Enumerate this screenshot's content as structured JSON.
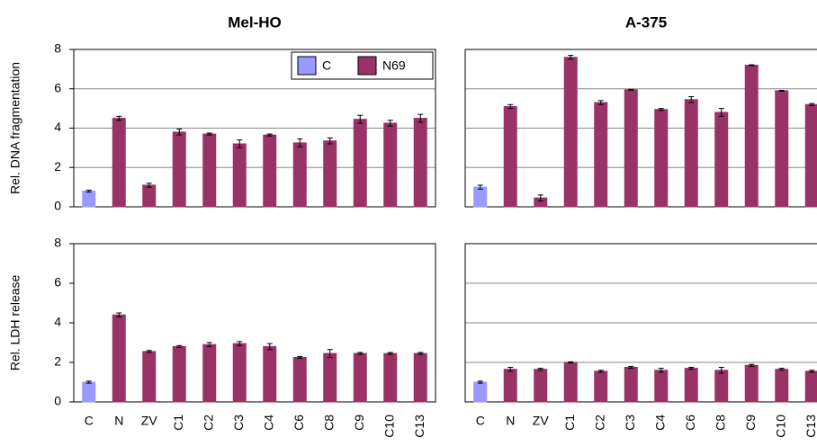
{
  "chart_data": [
    {
      "type": "bar",
      "title": "Mel-HO",
      "ylabel": "Rel. DNA fragmentation",
      "ylim": [
        0,
        8
      ],
      "yticks": [
        0,
        2,
        4,
        6,
        8
      ],
      "grid": true,
      "legend": "upper right",
      "series": [
        {
          "name": "C",
          "color": "#9999ff",
          "values": [
            0.8,
            null,
            null,
            null,
            null,
            null,
            null,
            null,
            null,
            null,
            null,
            null
          ],
          "errors": [
            0.05,
            null,
            null,
            null,
            null,
            null,
            null,
            null,
            null,
            null,
            null,
            null
          ]
        },
        {
          "name": "N69",
          "color": "#993366",
          "values": [
            null,
            4.5,
            1.1,
            3.8,
            3.7,
            3.2,
            3.65,
            3.25,
            3.35,
            4.45,
            4.25,
            4.5
          ],
          "errors": [
            null,
            0.1,
            0.1,
            0.15,
            0.05,
            0.2,
            0.05,
            0.2,
            0.15,
            0.2,
            0.15,
            0.2
          ]
        }
      ]
    },
    {
      "type": "bar",
      "title": "A-375",
      "grid": true,
      "series": [
        {
          "color": "#9999ff",
          "values": [
            1.0,
            null,
            null,
            null,
            null,
            null,
            null,
            null,
            null,
            null,
            null,
            null
          ],
          "errors": [
            0.1,
            null,
            null,
            null,
            null,
            null,
            null,
            null,
            null,
            null,
            null,
            null
          ]
        },
        {
          "color": "#993366",
          "values": [
            null,
            5.1,
            0.45,
            7.6,
            5.3,
            5.95,
            4.95,
            5.45,
            4.8,
            7.2,
            5.9,
            5.2
          ],
          "errors": [
            null,
            0.1,
            0.15,
            0.1,
            0.1,
            0.02,
            0.05,
            0.15,
            0.2,
            0.02,
            0.02,
            0.05
          ]
        }
      ]
    },
    {
      "type": "bar",
      "ylabel": "Rel. LDH release",
      "ylim": [
        0,
        8
      ],
      "yticks": [
        0,
        2,
        4,
        6,
        8
      ],
      "grid": false,
      "categories": [
        "C",
        "N",
        "ZV",
        "C1",
        "C2",
        "C3",
        "C4",
        "C6",
        "C8",
        "C9",
        "C10",
        "C13"
      ],
      "series": [
        {
          "color": "#9999ff",
          "values": [
            1.0,
            null,
            null,
            null,
            null,
            null,
            null,
            null,
            null,
            null,
            null,
            null
          ],
          "errors": [
            0.05,
            null,
            null,
            null,
            null,
            null,
            null,
            null,
            null,
            null,
            null,
            null
          ]
        },
        {
          "color": "#993366",
          "values": [
            null,
            4.4,
            2.55,
            2.8,
            2.9,
            2.95,
            2.8,
            2.25,
            2.45,
            2.45,
            2.45,
            2.45
          ],
          "errors": [
            null,
            0.1,
            0.05,
            0.05,
            0.1,
            0.1,
            0.15,
            0.05,
            0.2,
            0.05,
            0.05,
            0.05
          ]
        }
      ]
    },
    {
      "type": "bar",
      "grid": true,
      "categories": [
        "C",
        "N",
        "ZV",
        "C1",
        "C2",
        "C3",
        "C4",
        "C6",
        "C8",
        "C9",
        "C10",
        "C13"
      ],
      "series": [
        {
          "color": "#9999ff",
          "values": [
            1.0,
            null,
            null,
            null,
            null,
            null,
            null,
            null,
            null,
            null,
            null,
            null
          ],
          "errors": [
            0.05,
            null,
            null,
            null,
            null,
            null,
            null,
            null,
            null,
            null,
            null,
            null
          ]
        },
        {
          "color": "#993366",
          "values": [
            null,
            1.65,
            1.65,
            2.0,
            1.55,
            1.75,
            1.6,
            1.7,
            1.6,
            1.85,
            1.65,
            1.55
          ],
          "errors": [
            null,
            0.1,
            0.05,
            0.03,
            0.05,
            0.05,
            0.1,
            0.05,
            0.15,
            0.05,
            0.05,
            0.05
          ]
        }
      ]
    }
  ]
}
